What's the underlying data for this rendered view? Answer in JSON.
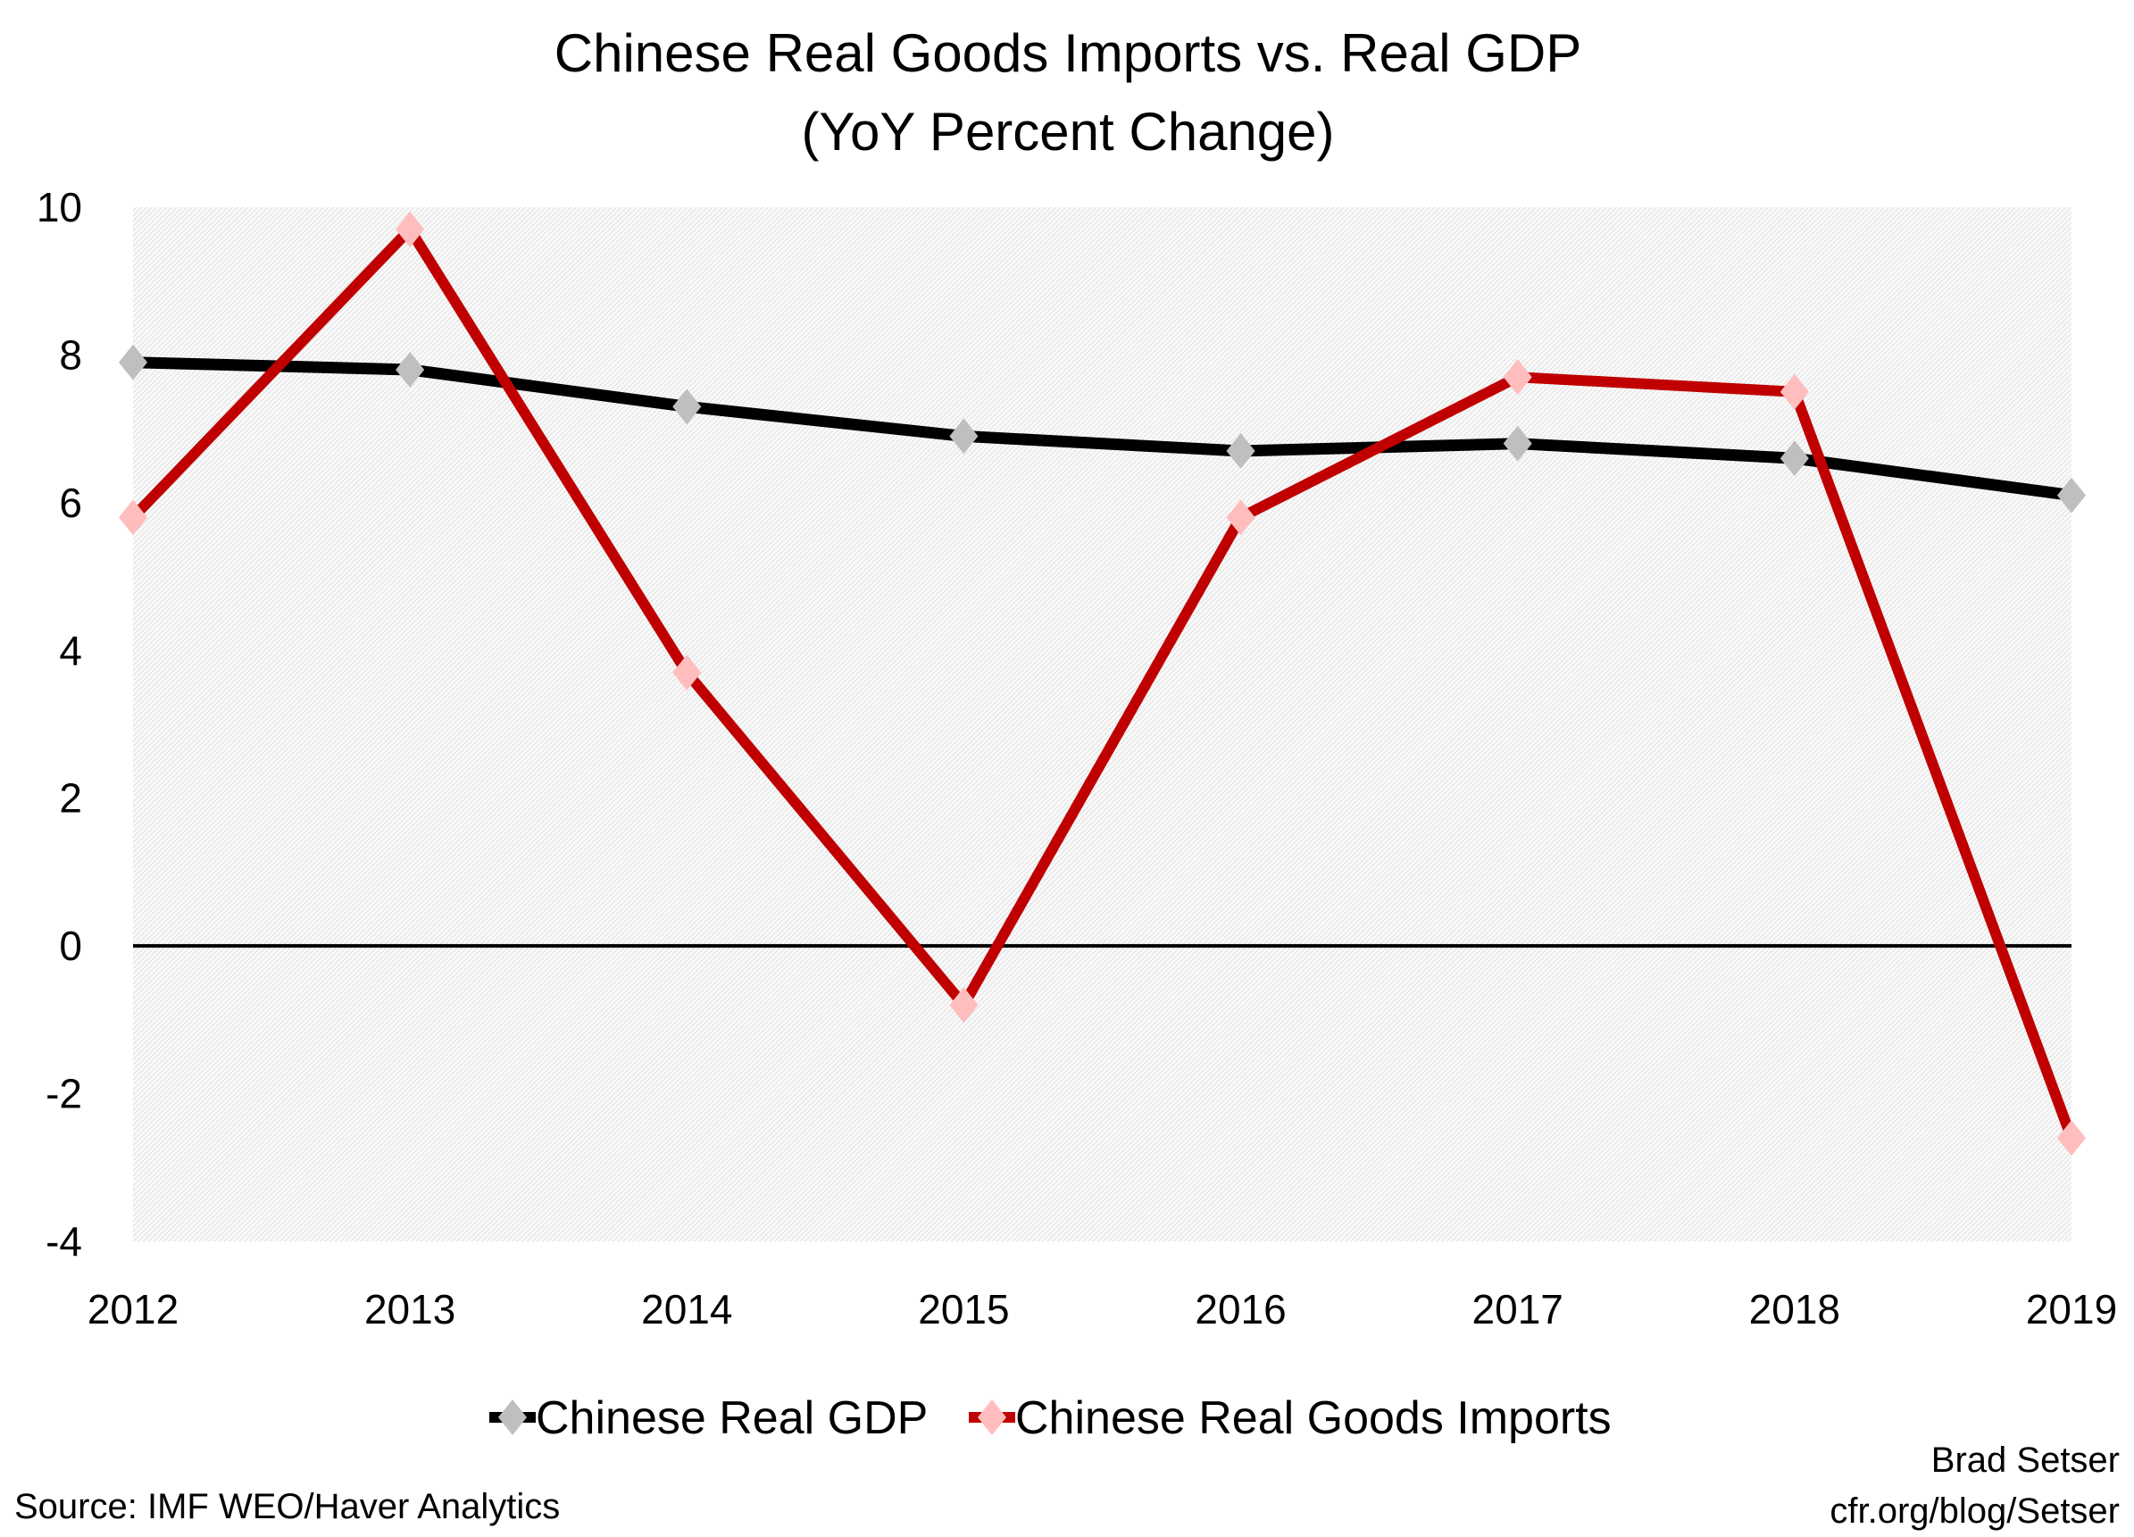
{
  "chart_data": {
    "type": "line",
    "title": "Chinese Real Goods Imports vs. Real GDP",
    "subtitle": "(YoY Percent Change)",
    "xlabel": "",
    "ylabel": "",
    "categories": [
      "2012",
      "2013",
      "2014",
      "2015",
      "2016",
      "2017",
      "2018",
      "2019"
    ],
    "ylim": [
      -4,
      10
    ],
    "yticks": [
      "10",
      "8",
      "6",
      "4",
      "2",
      "0",
      "-2",
      "-4"
    ],
    "grid": false,
    "legend_position": "bottom",
    "series": [
      {
        "name": "Chinese Real GDP",
        "values": [
          7.9,
          7.8,
          7.3,
          6.9,
          6.7,
          6.8,
          6.6,
          6.1
        ],
        "line_color": "#000000",
        "marker_color": "#bfbfbf",
        "marker": "diamond"
      },
      {
        "name": "Chinese Real Goods Imports",
        "values": [
          5.8,
          9.7,
          3.7,
          -0.8,
          5.8,
          7.7,
          7.5,
          -2.6
        ],
        "line_color": "#c00000",
        "marker_color": "#ffbdbd",
        "marker": "diamond"
      }
    ]
  },
  "source": "Source: IMF WEO/Haver Analytics",
  "author": "Brad Setser",
  "url": "cfr.org/blog/Setser"
}
